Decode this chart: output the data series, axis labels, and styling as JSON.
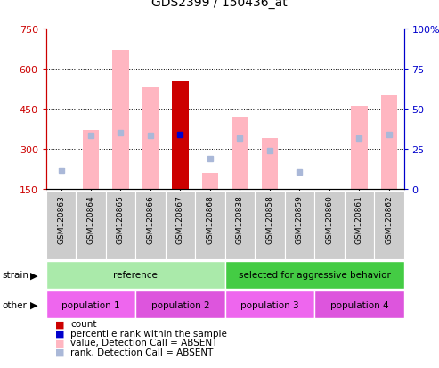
{
  "title": "GDS2399 / 150436_at",
  "samples": [
    "GSM120863",
    "GSM120864",
    "GSM120865",
    "GSM120866",
    "GSM120867",
    "GSM120868",
    "GSM120838",
    "GSM120858",
    "GSM120859",
    "GSM120860",
    "GSM120861",
    "GSM120862"
  ],
  "values_absent": [
    null,
    370,
    670,
    530,
    null,
    210,
    420,
    340,
    null,
    null,
    460,
    500
  ],
  "ranks_absent_left": [
    220,
    350,
    360,
    350,
    null,
    265,
    340,
    295,
    215,
    null,
    340,
    355
  ],
  "count_value": [
    null,
    null,
    null,
    null,
    555,
    null,
    null,
    null,
    null,
    null,
    null,
    null
  ],
  "count_rank_left": [
    null,
    null,
    null,
    null,
    355,
    null,
    null,
    null,
    null,
    null,
    null,
    null
  ],
  "ylim_left": [
    150,
    750
  ],
  "yticks_left": [
    150,
    300,
    450,
    600,
    750
  ],
  "yticks_right": [
    0,
    25,
    50,
    75,
    100
  ],
  "strain_groups": [
    {
      "label": "reference",
      "start": 0,
      "end": 6,
      "color": "#aaeaaa"
    },
    {
      "label": "selected for aggressive behavior",
      "start": 6,
      "end": 12,
      "color": "#44cc44"
    }
  ],
  "other_groups": [
    {
      "label": "population 1",
      "start": 0,
      "end": 3,
      "color": "#ee66ee"
    },
    {
      "label": "population 2",
      "start": 3,
      "end": 6,
      "color": "#dd55dd"
    },
    {
      "label": "population 3",
      "start": 6,
      "end": 9,
      "color": "#ee66ee"
    },
    {
      "label": "population 4",
      "start": 9,
      "end": 12,
      "color": "#dd55dd"
    }
  ],
  "legend_items": [
    {
      "label": "count",
      "color": "#cc0000"
    },
    {
      "label": "percentile rank within the sample",
      "color": "#0000cc"
    },
    {
      "label": "value, Detection Call = ABSENT",
      "color": "#ffb6c1"
    },
    {
      "label": "rank, Detection Call = ABSENT",
      "color": "#aab8d8"
    }
  ],
  "absent_bar_color": "#ffb6c1",
  "absent_rank_color": "#aab8d8",
  "count_bar_color": "#cc0000",
  "count_rank_color": "#0000cc",
  "axis_color_left": "#cc0000",
  "axis_color_right": "#0000cc",
  "bg_color": "#ffffff"
}
